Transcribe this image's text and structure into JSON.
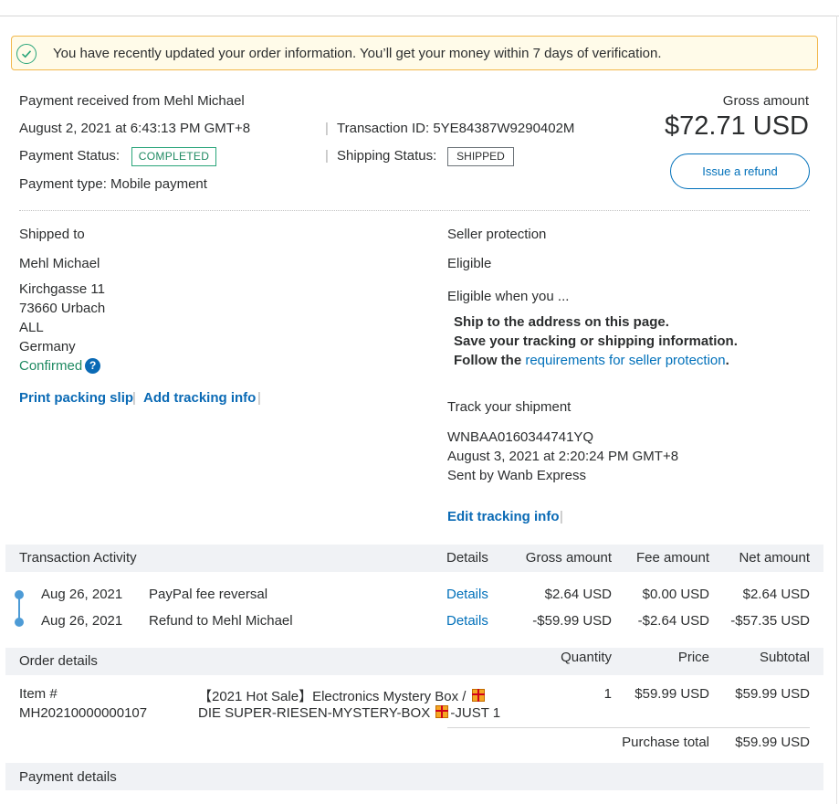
{
  "alert": {
    "text": "You have recently updated your order information. You’ll get your money within 7 days of verification."
  },
  "header": {
    "payment_received": "Payment received from Mehl Michael",
    "date": "August 2, 2021 at 6:43:13 PM GMT+8",
    "transaction_id": "Transaction ID: 5YE84387W9290402M",
    "payment_status_label": "Payment Status:",
    "payment_status_value": "COMPLETED",
    "shipping_status_label": "Shipping Status:",
    "shipping_status_value": "SHIPPED",
    "payment_type": "Payment type: Mobile payment",
    "gross_label": "Gross amount",
    "gross_value": "$72.71 USD",
    "refund_button": "Issue a refund",
    "separator": "|"
  },
  "shipped_to": {
    "heading": "Shipped to",
    "name": "Mehl Michael",
    "address_lines": [
      "Kirchgasse 11",
      "73660 Urbach",
      "ALL",
      "Germany"
    ],
    "confirmed": "Confirmed",
    "help_icon": "?",
    "print_packing_slip": "Print packing slip",
    "add_tracking_info": "Add tracking info"
  },
  "seller_protection": {
    "heading": "Seller protection",
    "status": "Eligible",
    "eligible_when": "Eligible when you ...",
    "req1": "Ship to the address on this page.",
    "req2": "Save your tracking or shipping information.",
    "req3_prefix": "Follow the ",
    "req3_link": "requirements for seller protection",
    "req3_suffix": "."
  },
  "tracking": {
    "heading": "Track your shipment",
    "number": "WNBAA0160344741YQ",
    "date": "August 3, 2021 at 2:20:24 PM GMT+8",
    "carrier": "Sent by Wanb Express",
    "edit_link": "Edit tracking info"
  },
  "activity": {
    "header": {
      "title": "Transaction Activity",
      "details": "Details",
      "gross": "Gross amount",
      "fee": "Fee amount",
      "net": "Net amount"
    },
    "rows": [
      {
        "date": "Aug 26, 2021",
        "description": "PayPal fee reversal",
        "details": "Details",
        "gross": "$2.64 USD",
        "fee": "$0.00 USD",
        "net": "$2.64 USD"
      },
      {
        "date": "Aug 26, 2021",
        "description": "Refund to Mehl Michael",
        "details": "Details",
        "gross": "-$59.99 USD",
        "fee": "-$2.64 USD",
        "net": "-$57.35 USD"
      }
    ]
  },
  "order": {
    "header": {
      "title": "Order details",
      "quantity": "Quantity",
      "price": "Price",
      "subtotal": "Subtotal"
    },
    "item": {
      "label": "Item #",
      "number": "MH20210000000107",
      "desc_line1": "【2021 Hot Sale】Electronics Mystery Box /",
      "desc_line2_a": "DIE SUPER-RIESEN-MYSTERY-BOX",
      "desc_line2_b": "-JUST 1",
      "quantity": "1",
      "price": "$59.99 USD",
      "subtotal": "$59.99 USD"
    },
    "purchase_total_label": "Purchase total",
    "purchase_total_value": "$59.99 USD"
  },
  "payment_details": {
    "title": "Payment details"
  },
  "colors": {
    "link": "#0070ba",
    "success": "#2aa57a",
    "alert_border": "#f2b84b",
    "alert_bg": "#fffbe9"
  }
}
